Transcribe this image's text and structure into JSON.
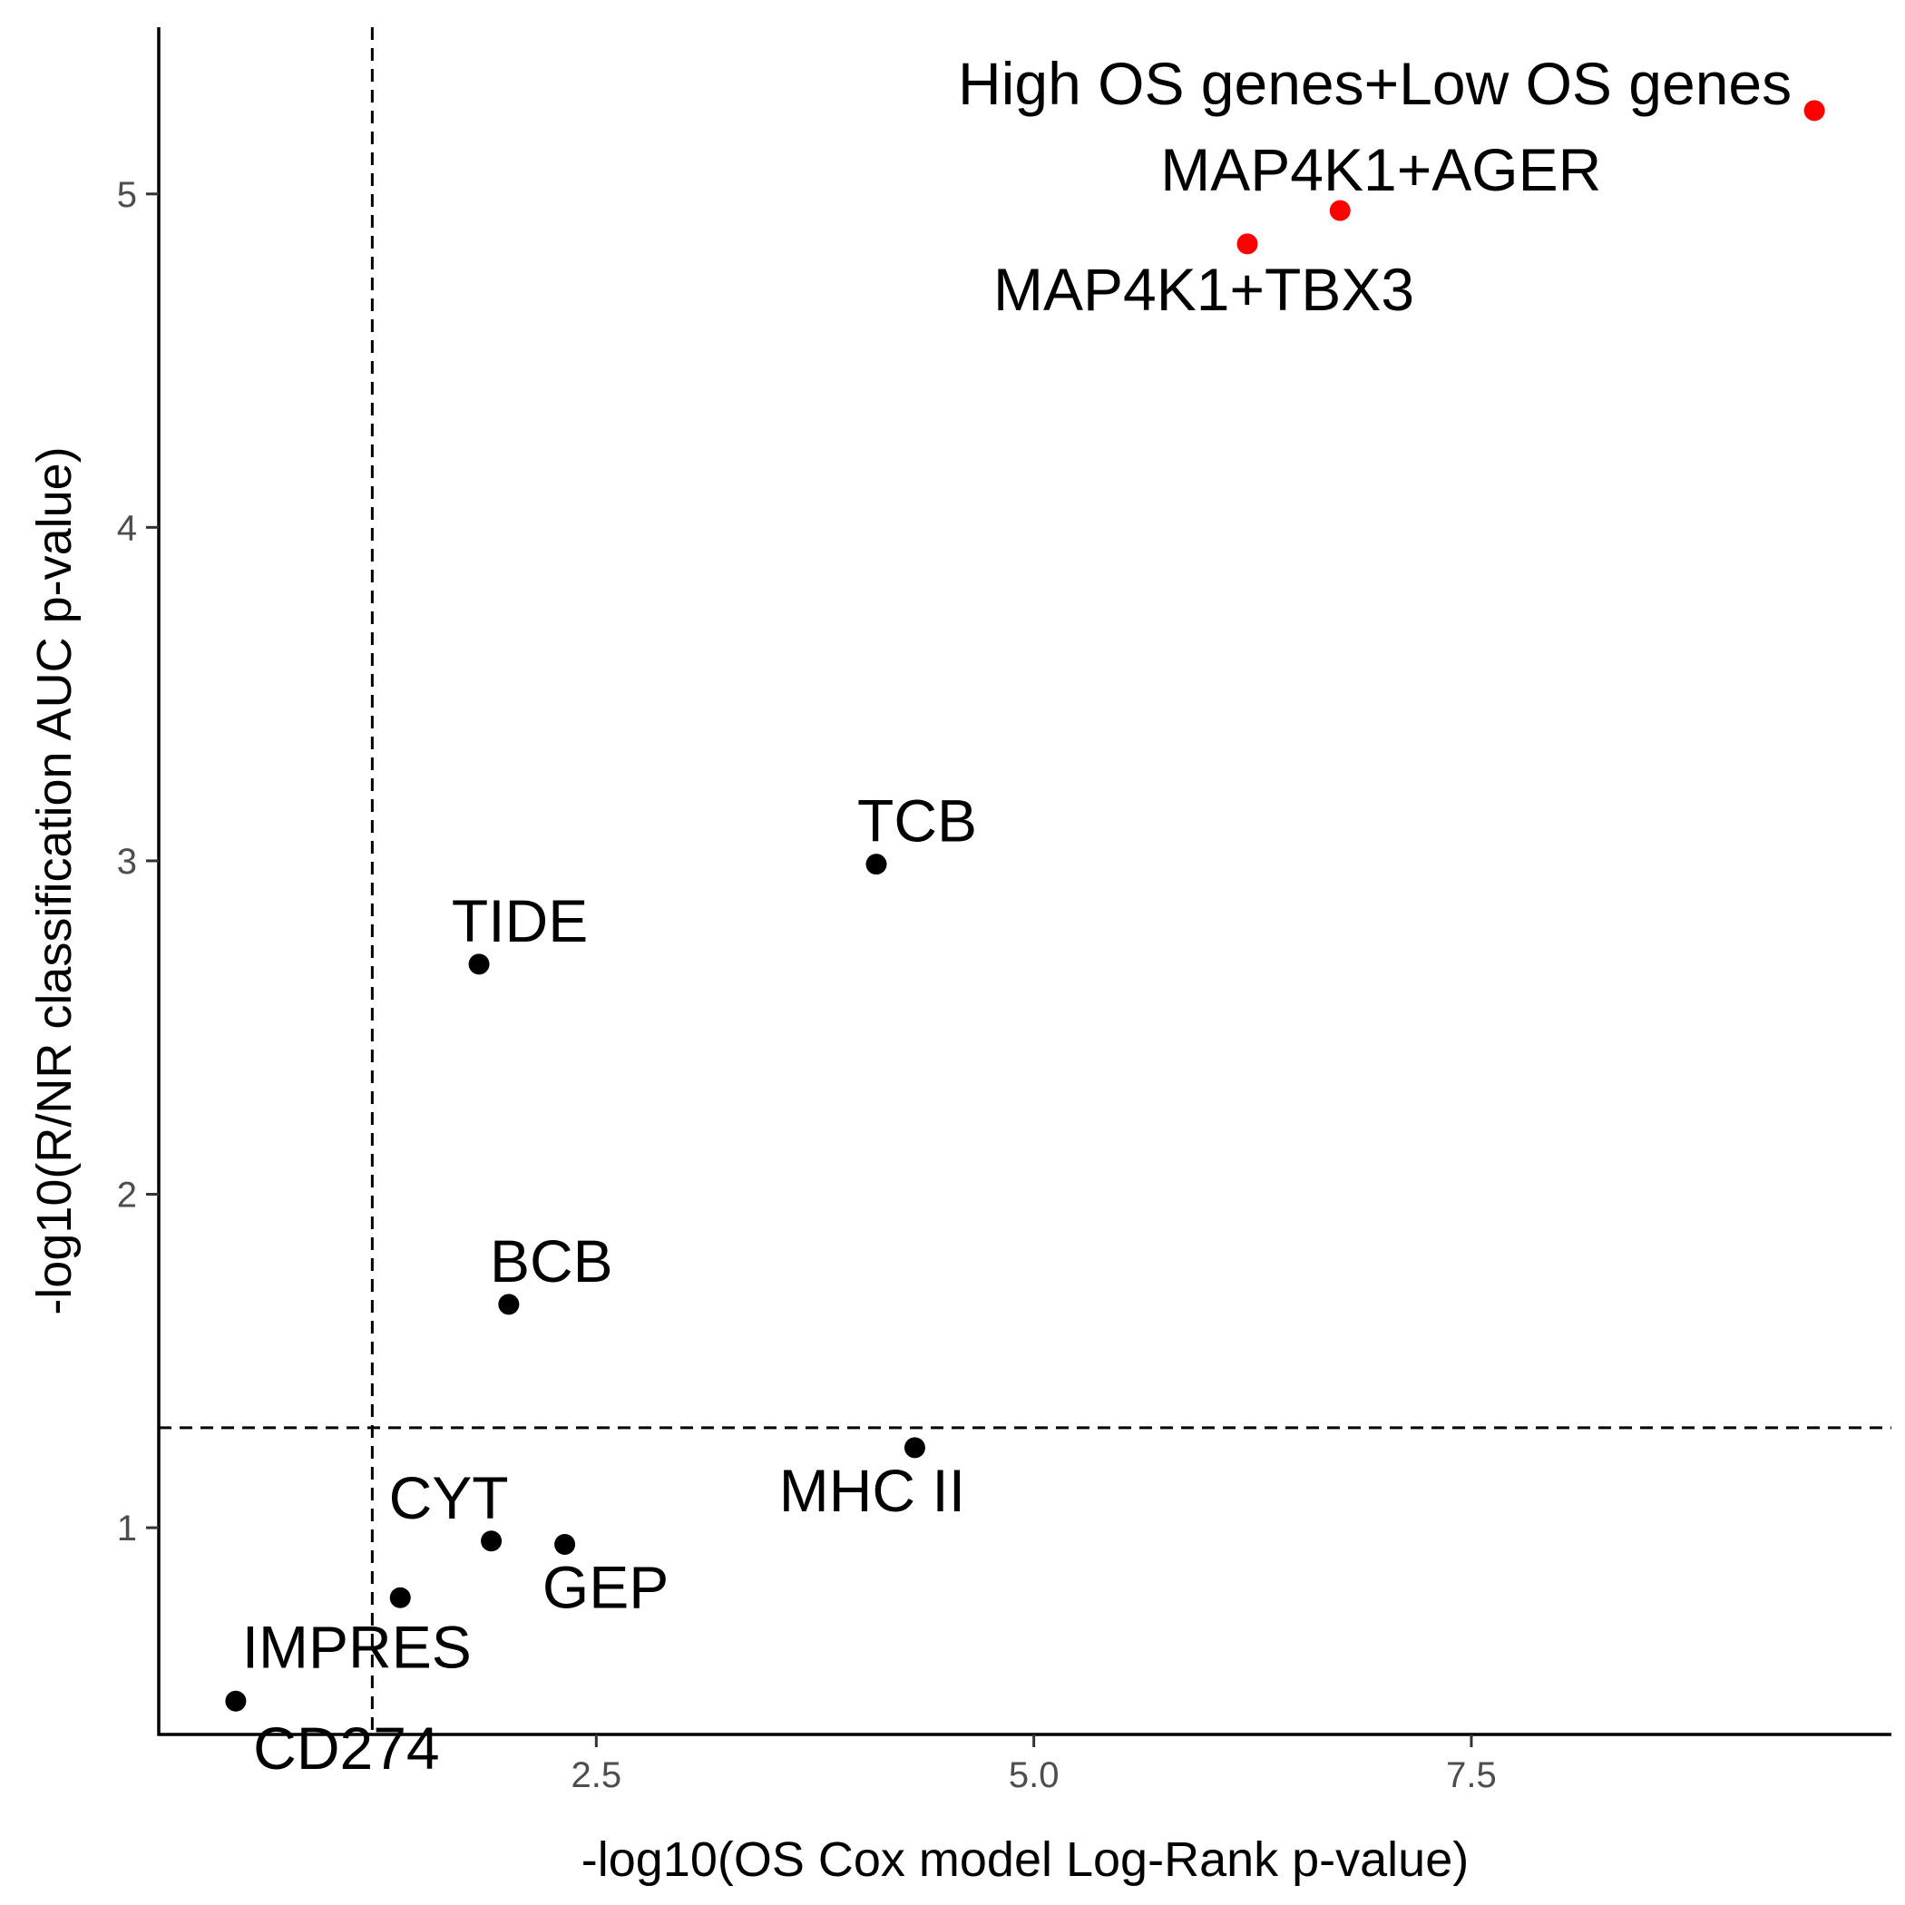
{
  "chart_data": {
    "type": "scatter",
    "xlabel": "-log10(OS Cox model Log-Rank p-value)",
    "ylabel": "-log10(R/NR classification AUC p-value)",
    "xlim": [
      0.0,
      9.9
    ],
    "ylim": [
      0.38,
      5.5
    ],
    "xticks": [
      2.5,
      5.0,
      7.5
    ],
    "xtick_labels": [
      "2.5",
      "5.0",
      "7.5"
    ],
    "yticks": [
      1,
      2,
      3,
      4,
      5
    ],
    "ytick_labels": [
      "1",
      "2",
      "3",
      "4",
      "5"
    ],
    "grid": false,
    "reference_lines": {
      "x": 1.22,
      "y": 1.3
    },
    "colors": {
      "highlight": "#ff0000",
      "default": "#000000"
    },
    "points": [
      {
        "label": "High OS genes+Low OS genes",
        "x": 9.46,
        "y": 5.25,
        "highlight": true
      },
      {
        "label": "MAP4K1+AGER",
        "x": 6.75,
        "y": 4.95,
        "highlight": true
      },
      {
        "label": "MAP4K1+TBX3",
        "x": 6.22,
        "y": 4.85,
        "highlight": true
      },
      {
        "label": "TCB",
        "x": 4.1,
        "y": 2.99,
        "highlight": false
      },
      {
        "label": "TIDE",
        "x": 1.83,
        "y": 2.69,
        "highlight": false
      },
      {
        "label": "BCB",
        "x": 2.0,
        "y": 1.67,
        "highlight": false
      },
      {
        "label": "MHC II",
        "x": 4.32,
        "y": 1.24,
        "highlight": false
      },
      {
        "label": "CYT",
        "x": 1.9,
        "y": 0.96,
        "highlight": false
      },
      {
        "label": "GEP",
        "x": 2.32,
        "y": 0.95,
        "highlight": false
      },
      {
        "label": "IMPRES",
        "x": 1.38,
        "y": 0.79,
        "highlight": false
      },
      {
        "label": "CD274",
        "x": 0.44,
        "y": 0.48,
        "highlight": false
      }
    ]
  }
}
